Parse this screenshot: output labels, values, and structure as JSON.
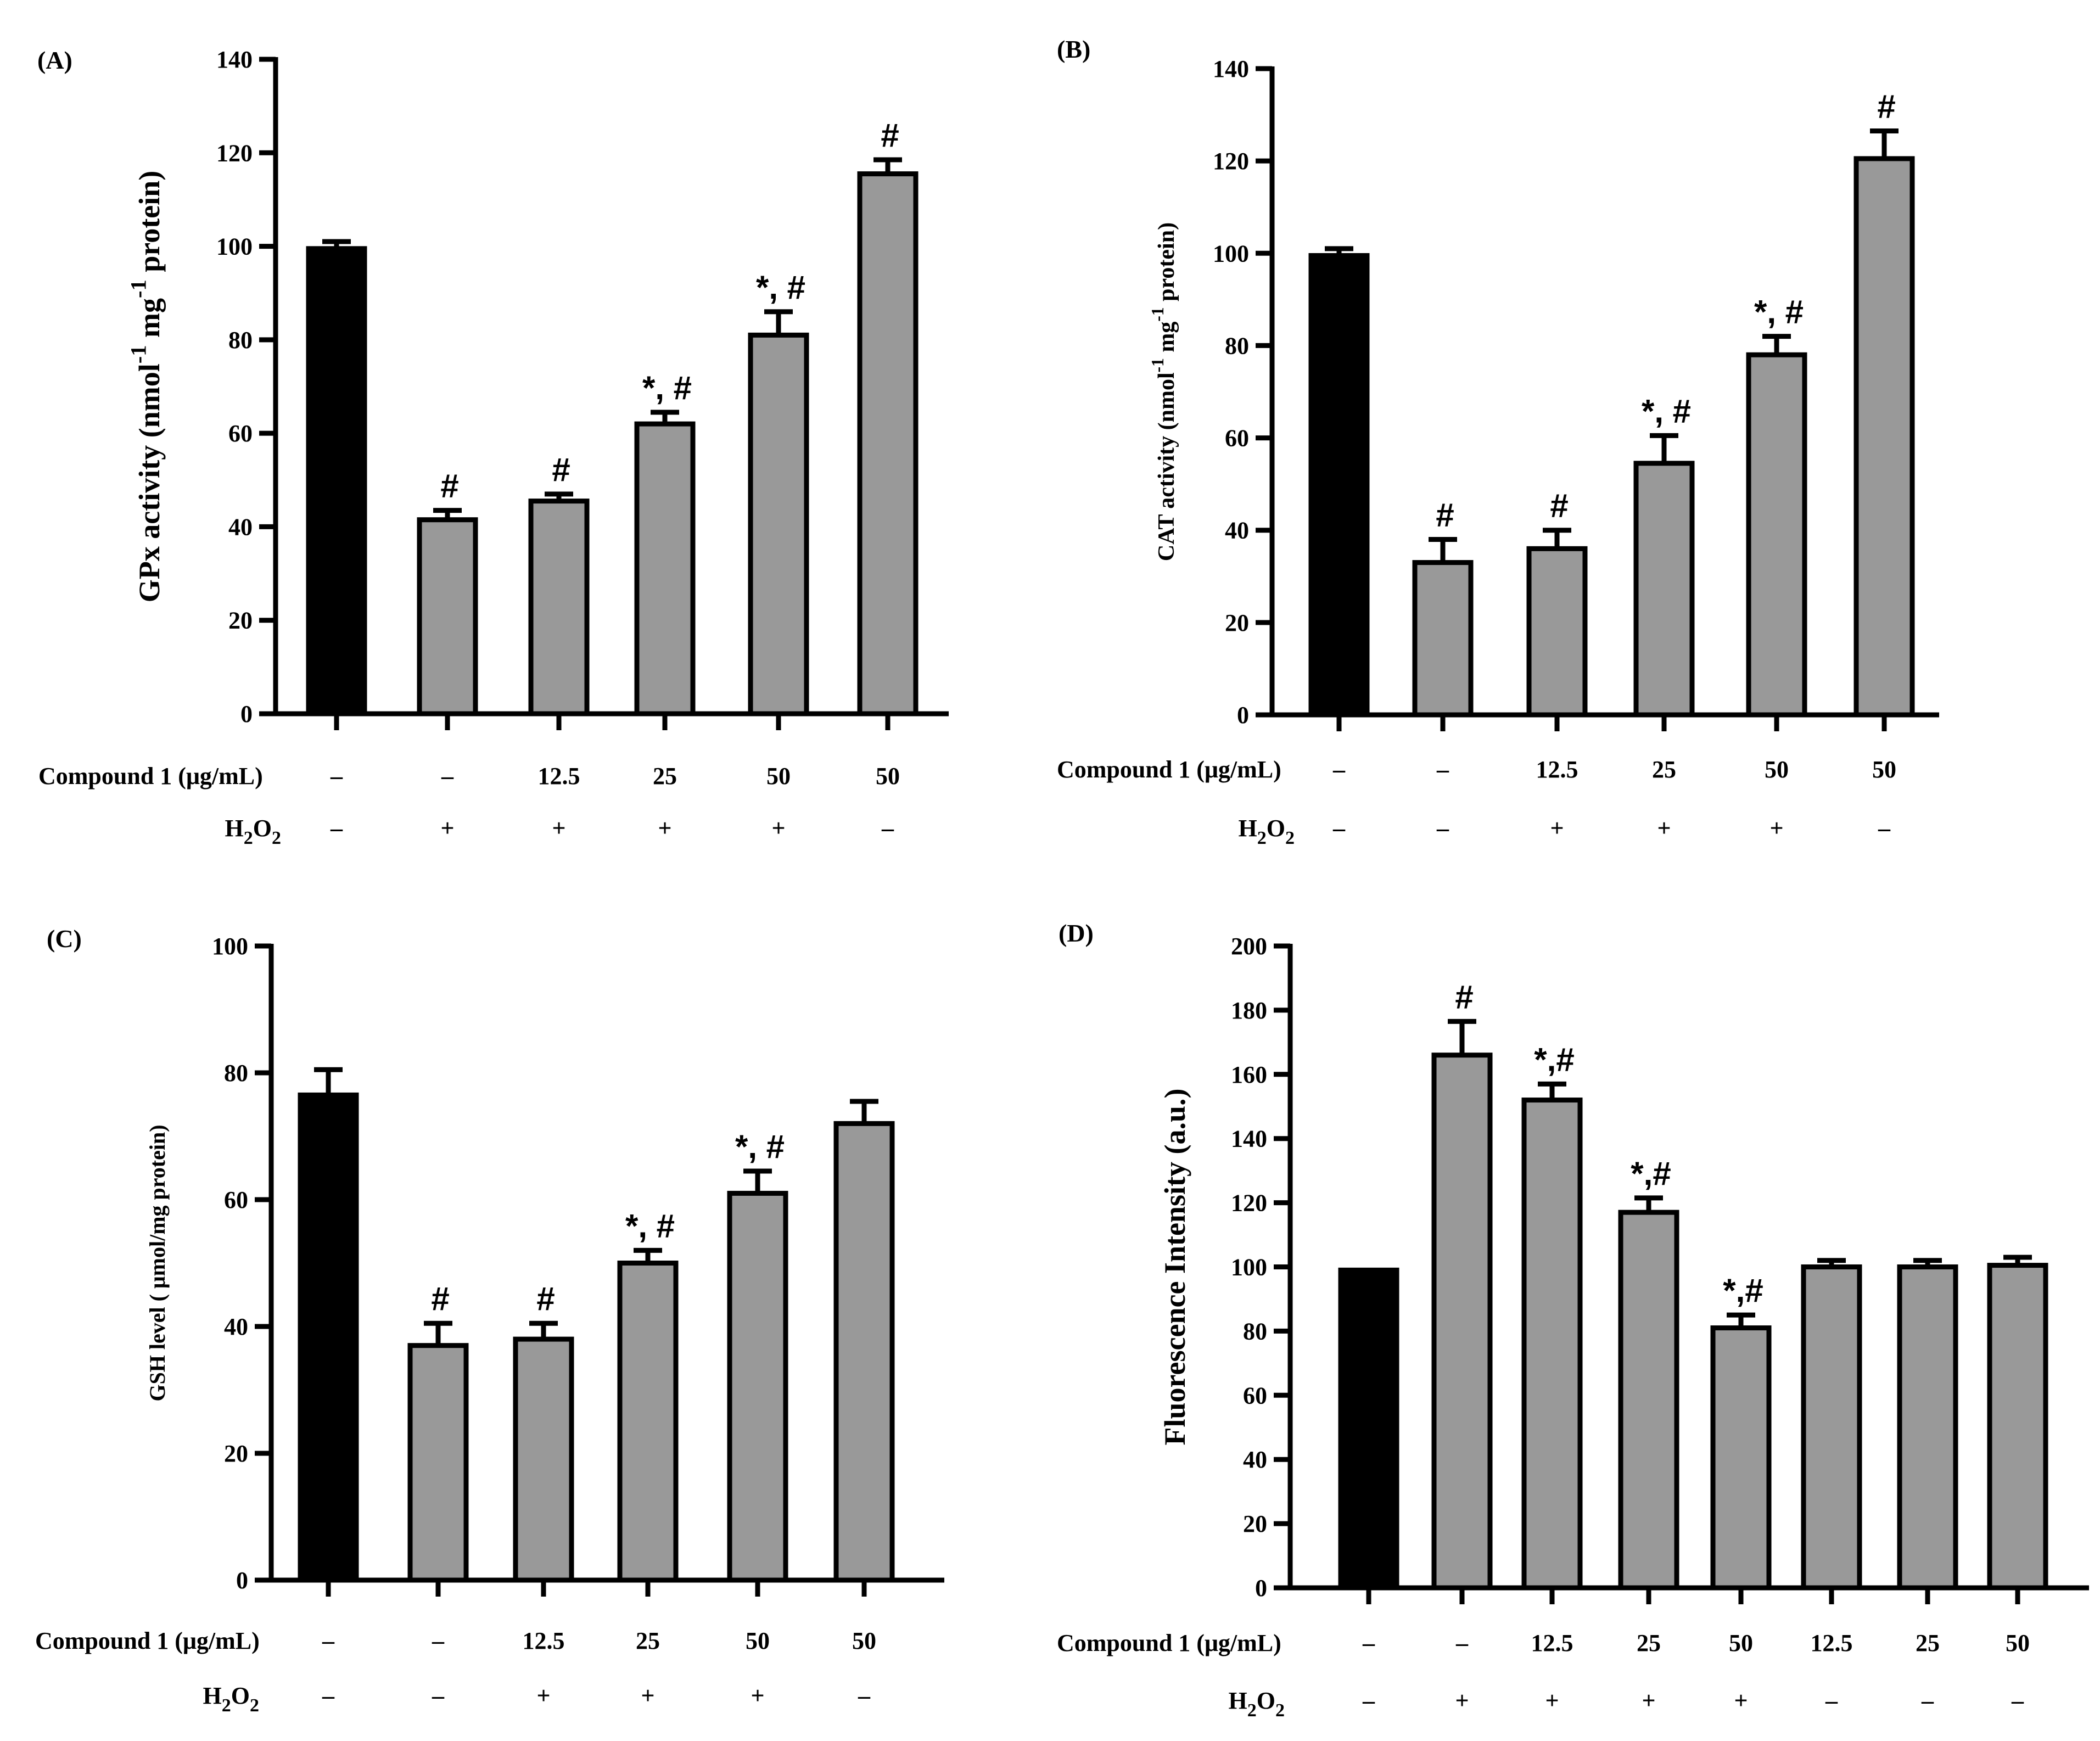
{
  "chart_data": [
    {
      "panel": "(A)",
      "type": "bar",
      "ylabel_text": "GPx activity (nmol",
      "ylabel_sup1": "-1",
      "ylabel_mid": " mg",
      "ylabel_sup2": "-1",
      "ylabel_end": " protein)",
      "ylim": [
        0,
        140
      ],
      "yticks": [
        "0",
        "20",
        "40",
        "60",
        "80",
        "100",
        "120",
        "140"
      ],
      "values": [
        99.5,
        41.5,
        45.5,
        62,
        81,
        115.5
      ],
      "errors": [
        1.5,
        2,
        1.5,
        2.5,
        5,
        3
      ],
      "colors": [
        "#000000",
        "#999999",
        "#999999",
        "#999999",
        "#999999",
        "#999999"
      ],
      "annotations": [
        "",
        "#",
        "#",
        "*, #",
        "*, #",
        "#"
      ],
      "row1_label": "Compound 1 (μg/mL)",
      "row1": [
        "–",
        "–",
        "12.5",
        "25",
        "50",
        "50"
      ],
      "row2_label_main": "H",
      "row2_label_sub1": "2",
      "row2_label_mid": "O",
      "row2_label_sub2": "2",
      "row2": [
        "–",
        "+",
        "+",
        "+",
        "+",
        "–"
      ]
    },
    {
      "panel": "(B)",
      "type": "bar",
      "ylabel_text": "CAT activity  (nmol",
      "ylabel_sup1": "-1",
      "ylabel_mid": " mg",
      "ylabel_sup2": "-1",
      "ylabel_end": " protein)",
      "ylim": [
        0,
        140
      ],
      "yticks": [
        "0",
        "20",
        "40",
        "60",
        "80",
        "100",
        "120",
        "140"
      ],
      "values": [
        99.5,
        33,
        36,
        54.5,
        78,
        120.5
      ],
      "errors": [
        1.5,
        5,
        4,
        6,
        4,
        6
      ],
      "colors": [
        "#000000",
        "#999999",
        "#999999",
        "#999999",
        "#999999",
        "#999999"
      ],
      "annotations": [
        "",
        "#",
        "#",
        "*, #",
        "*, #",
        "#"
      ],
      "row1_label": "Compound 1 (μg/mL)",
      "row1": [
        "–",
        "–",
        "12.5",
        "25",
        "50",
        "50"
      ],
      "row2_label_main": "H",
      "row2_label_sub1": "2",
      "row2_label_mid": "O",
      "row2_label_sub2": "2",
      "row2": [
        "–",
        "–",
        "+",
        "+",
        "+",
        "–"
      ]
    },
    {
      "panel": "(C)",
      "type": "bar",
      "ylabel_text": "GSH level ( μmol/mg protein)",
      "ylabel_sup1": "",
      "ylabel_mid": "",
      "ylabel_sup2": "",
      "ylabel_end": "",
      "ylim": [
        0,
        100
      ],
      "yticks": [
        "0",
        "20",
        "40",
        "60",
        "80",
        "100"
      ],
      "values": [
        76.5,
        37,
        38,
        50,
        61,
        72
      ],
      "errors": [
        4,
        3.5,
        2.5,
        2,
        3.5,
        3.5
      ],
      "colors": [
        "#000000",
        "#999999",
        "#999999",
        "#999999",
        "#999999",
        "#999999"
      ],
      "annotations": [
        "",
        "#",
        "#",
        "*, #",
        "*, #",
        ""
      ],
      "row1_label": "Compound 1 (μg/mL)",
      "row1": [
        "–",
        "–",
        "12.5",
        "25",
        "50",
        "50"
      ],
      "row2_label_main": "H",
      "row2_label_sub1": "2",
      "row2_label_mid": "O",
      "row2_label_sub2": "2",
      "row2": [
        "–",
        "–",
        "+",
        "+",
        "+",
        "–"
      ]
    },
    {
      "panel": "(D)",
      "type": "bar",
      "ylabel_text": "Fluorescence Intensity (a.u.)",
      "ylabel_sup1": "",
      "ylabel_mid": "",
      "ylabel_sup2": "",
      "ylabel_end": "",
      "ylim": [
        0,
        200
      ],
      "yticks": [
        "0",
        "20",
        "40",
        "60",
        "80",
        "100",
        "120",
        "140",
        "160",
        "180",
        "200"
      ],
      "values": [
        99,
        166,
        152,
        117,
        81,
        100,
        100,
        100.5
      ],
      "errors": [
        0,
        10.5,
        5,
        4.5,
        4,
        2,
        2,
        2.5
      ],
      "colors": [
        "#000000",
        "#999999",
        "#999999",
        "#999999",
        "#999999",
        "#999999",
        "#999999",
        "#999999"
      ],
      "annotations": [
        "",
        "#",
        "*,#",
        "*,#",
        "*,#",
        "",
        "",
        ""
      ],
      "row1_label": "Compound 1 (μg/mL)",
      "row1": [
        "–",
        "–",
        "12.5",
        "25",
        "50",
        "12.5",
        "25",
        "50"
      ],
      "row2_label_main": "H",
      "row2_label_sub1": "2",
      "row2_label_mid": "O",
      "row2_label_sub2": "2",
      "row2": [
        "–",
        "+",
        "+",
        "+",
        "+",
        "–",
        "–",
        "–"
      ]
    }
  ]
}
